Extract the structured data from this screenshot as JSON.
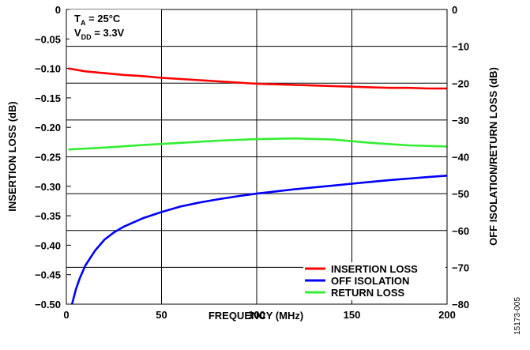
{
  "chart_data": {
    "type": "line",
    "xlabel": "FREQUENCY (MHz)",
    "ylabel_left": "INSERTION LOSS (dB)",
    "ylabel_right": "OFF ISOLATION/RETURN LOSS (dB)",
    "xlim": [
      0,
      200
    ],
    "ylim_left": [
      -0.5,
      0
    ],
    "ylim_right": [
      -80,
      0
    ],
    "x_ticks": [
      "0",
      "50",
      "100",
      "150",
      "200"
    ],
    "y_left_ticks": [
      "0",
      "−0.05",
      "−0.10",
      "−0.15",
      "−0.20",
      "−0.25",
      "−0.30",
      "−0.35",
      "−0.40",
      "−0.45",
      "−0.50"
    ],
    "y_right_ticks": [
      "0",
      "−10",
      "−20",
      "−30",
      "−40",
      "−50",
      "−60",
      "−70",
      "−80"
    ],
    "grid": true,
    "legend_position": "bottom-right",
    "conditions": {
      "ta": {
        "main": "T",
        "sub": "A",
        "rest": " = 25°C"
      },
      "vdd": {
        "main": "V",
        "sub": "DD",
        "rest": " = 3.3V"
      }
    },
    "series": [
      {
        "name": "INSERTION LOSS",
        "axis": "left",
        "color": "#ff0000",
        "x": [
          1,
          10,
          20,
          30,
          40,
          50,
          60,
          70,
          80,
          90,
          100,
          110,
          120,
          130,
          140,
          150,
          160,
          170,
          180,
          190,
          200
        ],
        "y": [
          -0.1,
          -0.105,
          -0.108,
          -0.111,
          -0.113,
          -0.116,
          -0.118,
          -0.12,
          -0.122,
          -0.124,
          -0.126,
          -0.127,
          -0.128,
          -0.129,
          -0.13,
          -0.131,
          -0.132,
          -0.133,
          -0.133,
          -0.134,
          -0.134
        ]
      },
      {
        "name": "OFF ISOLATION",
        "axis": "right",
        "color": "#0000ff",
        "x": [
          3,
          5,
          7,
          10,
          15,
          20,
          25,
          30,
          40,
          50,
          60,
          70,
          80,
          90,
          100,
          110,
          120,
          130,
          140,
          150,
          160,
          170,
          180,
          190,
          200
        ],
        "y": [
          -80,
          -76,
          -73,
          -69.5,
          -65.5,
          -62.5,
          -60.5,
          -59,
          -56.7,
          -55,
          -53.5,
          -52.4,
          -51.5,
          -50.7,
          -50,
          -49.4,
          -48.8,
          -48.3,
          -47.8,
          -47.3,
          -46.8,
          -46.3,
          -45.9,
          -45.5,
          -45.1
        ]
      },
      {
        "name": "RETURN LOSS",
        "axis": "right",
        "color": "#33ee33",
        "x": [
          1,
          20,
          40,
          60,
          80,
          100,
          120,
          140,
          160,
          180,
          200
        ],
        "y": [
          -38,
          -37.5,
          -36.8,
          -36.2,
          -35.6,
          -35.2,
          -35.0,
          -35.3,
          -36.2,
          -36.9,
          -37.2
        ]
      }
    ]
  },
  "figure_id": "15173-005"
}
